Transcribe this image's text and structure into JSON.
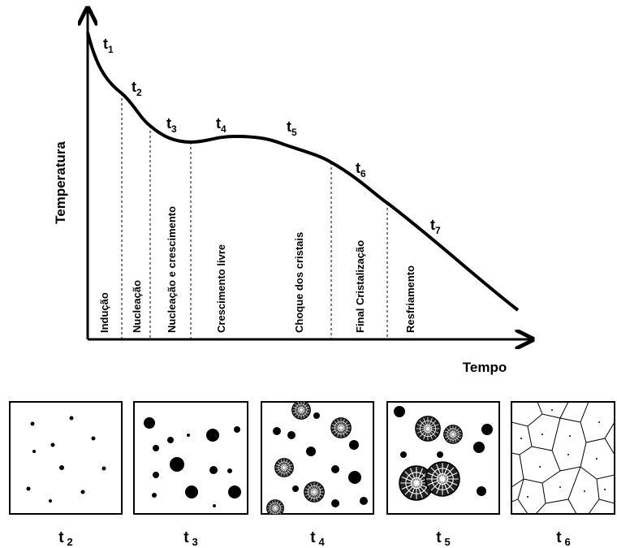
{
  "axes": {
    "y_label": "Temperatura",
    "x_label": "Tempo"
  },
  "curve_labels": [
    {
      "letter": "t",
      "sub": "1"
    },
    {
      "letter": "t",
      "sub": "2"
    },
    {
      "letter": "t",
      "sub": "3"
    },
    {
      "letter": "t",
      "sub": "4"
    },
    {
      "letter": "t",
      "sub": "5"
    },
    {
      "letter": "t",
      "sub": "6"
    },
    {
      "letter": "t",
      "sub": "7"
    }
  ],
  "stages": [
    "Indução",
    "Nucleação",
    "Nucleação e crescimento",
    "Crescimento livre",
    "Choque dos cristais",
    "Final Cristalização",
    "Resfriamento"
  ],
  "panels": [
    {
      "letter": "t",
      "sub": "2"
    },
    {
      "letter": "t",
      "sub": "3"
    },
    {
      "letter": "t",
      "sub": "4"
    },
    {
      "letter": "t",
      "sub": "5"
    },
    {
      "letter": "t",
      "sub": "6"
    }
  ]
}
